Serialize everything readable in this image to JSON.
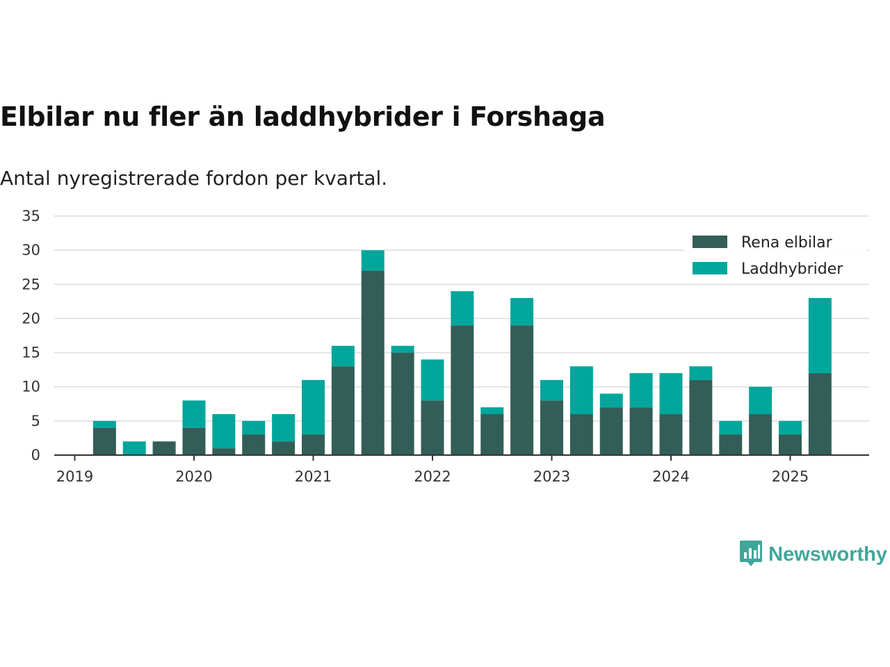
{
  "title": "Elbilar nu fler än laddhybrider i Forshaga",
  "subtitle": "Antal nyregistrerade fordon per kvartal.",
  "brand": {
    "name": "Newsworthy",
    "icon": "bar-chart-speech-bubble-icon",
    "color": "#3fa79a"
  },
  "chart_data": {
    "type": "bar",
    "stacked": true,
    "categories": [
      "2019 Q2",
      "2019 Q3",
      "2019 Q4",
      "2020 Q1",
      "2020 Q2",
      "2020 Q3",
      "2020 Q4",
      "2021 Q1",
      "2021 Q2",
      "2021 Q3",
      "2021 Q4",
      "2022 Q1",
      "2022 Q2",
      "2022 Q3",
      "2022 Q4",
      "2023 Q1",
      "2023 Q2",
      "2023 Q3",
      "2023 Q4",
      "2024 Q1",
      "2024 Q2",
      "2024 Q3",
      "2024 Q4",
      "2025 Q1",
      "2025 Q2"
    ],
    "series": [
      {
        "name": "Rena elbilar",
        "color": "#335e57",
        "values": [
          4,
          0,
          2,
          4,
          1,
          3,
          2,
          3,
          13,
          27,
          15,
          8,
          19,
          6,
          19,
          8,
          6,
          7,
          7,
          6,
          11,
          3,
          6,
          3,
          12
        ]
      },
      {
        "name": "Laddhybrider",
        "color": "#00a69b",
        "values": [
          1,
          2,
          0,
          4,
          5,
          2,
          4,
          8,
          3,
          3,
          1,
          6,
          5,
          1,
          4,
          3,
          7,
          2,
          5,
          6,
          2,
          2,
          4,
          2,
          11
        ]
      }
    ],
    "x_ticks": [
      "2019",
      "2020",
      "2021",
      "2022",
      "2023",
      "2024",
      "2025"
    ],
    "y_ticks": [
      0,
      5,
      10,
      15,
      20,
      25,
      30,
      35
    ],
    "ylim": [
      0,
      35
    ],
    "grid": true,
    "legend": "top-right",
    "xlabel": "",
    "ylabel": ""
  }
}
